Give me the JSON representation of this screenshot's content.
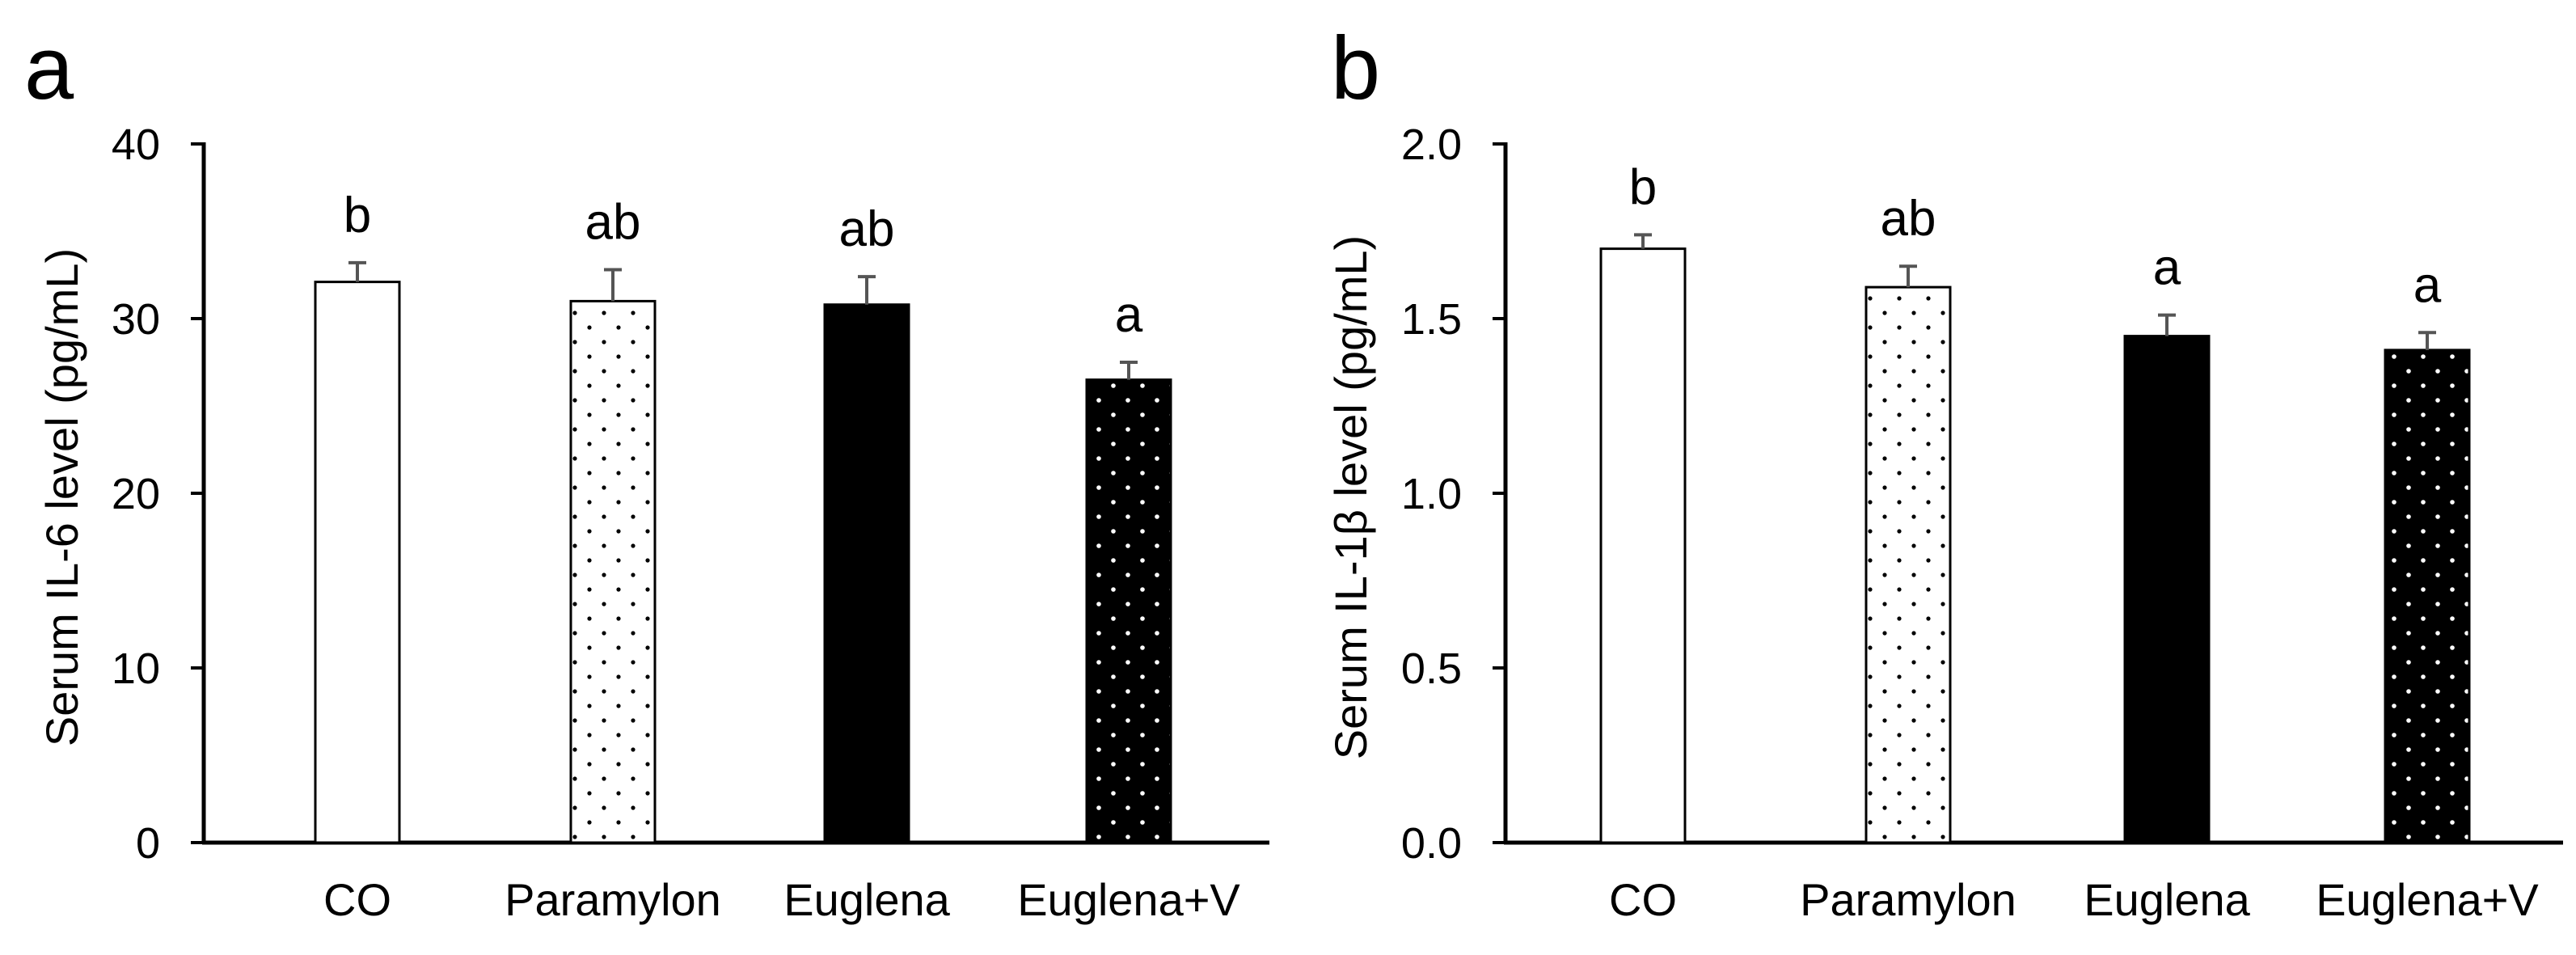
{
  "chart_data": [
    {
      "panel": "a",
      "type": "bar",
      "ylabel": "Serum IL-6 level (pg/mL)",
      "categories": [
        "CO",
        "Paramylon",
        "Euglena",
        "Euglena+V"
      ],
      "values": [
        32.1,
        31.0,
        30.8,
        26.5
      ],
      "errors": [
        1.1,
        1.8,
        1.6,
        1.0
      ],
      "significance": [
        "b",
        "ab",
        "ab",
        "a"
      ],
      "ylim": [
        0,
        40
      ],
      "yticks": [
        0,
        10,
        20,
        30,
        40
      ],
      "ytick_labels": [
        "0",
        "10",
        "20",
        "30",
        "40"
      ]
    },
    {
      "panel": "b",
      "type": "bar",
      "ylabel": "Serum IL-1β level (pg/mL)",
      "categories": [
        "CO",
        "Paramylon",
        "Euglena",
        "Euglena+V"
      ],
      "values": [
        1.7,
        1.59,
        1.45,
        1.41
      ],
      "errors": [
        0.04,
        0.06,
        0.06,
        0.05
      ],
      "significance": [
        "b",
        "ab",
        "a",
        "a"
      ],
      "ylim": [
        0,
        2.0
      ],
      "yticks": [
        0,
        0.5,
        1.0,
        1.5,
        2.0
      ],
      "ytick_labels": [
        "0.0",
        "0.5",
        "1.0",
        "1.5",
        "2.0"
      ]
    }
  ],
  "styles": {
    "bar_fill_white": "#ffffff",
    "bar_fill_black": "#000000",
    "bar_stroke": "#000000",
    "errorbar_color": "#555555"
  }
}
